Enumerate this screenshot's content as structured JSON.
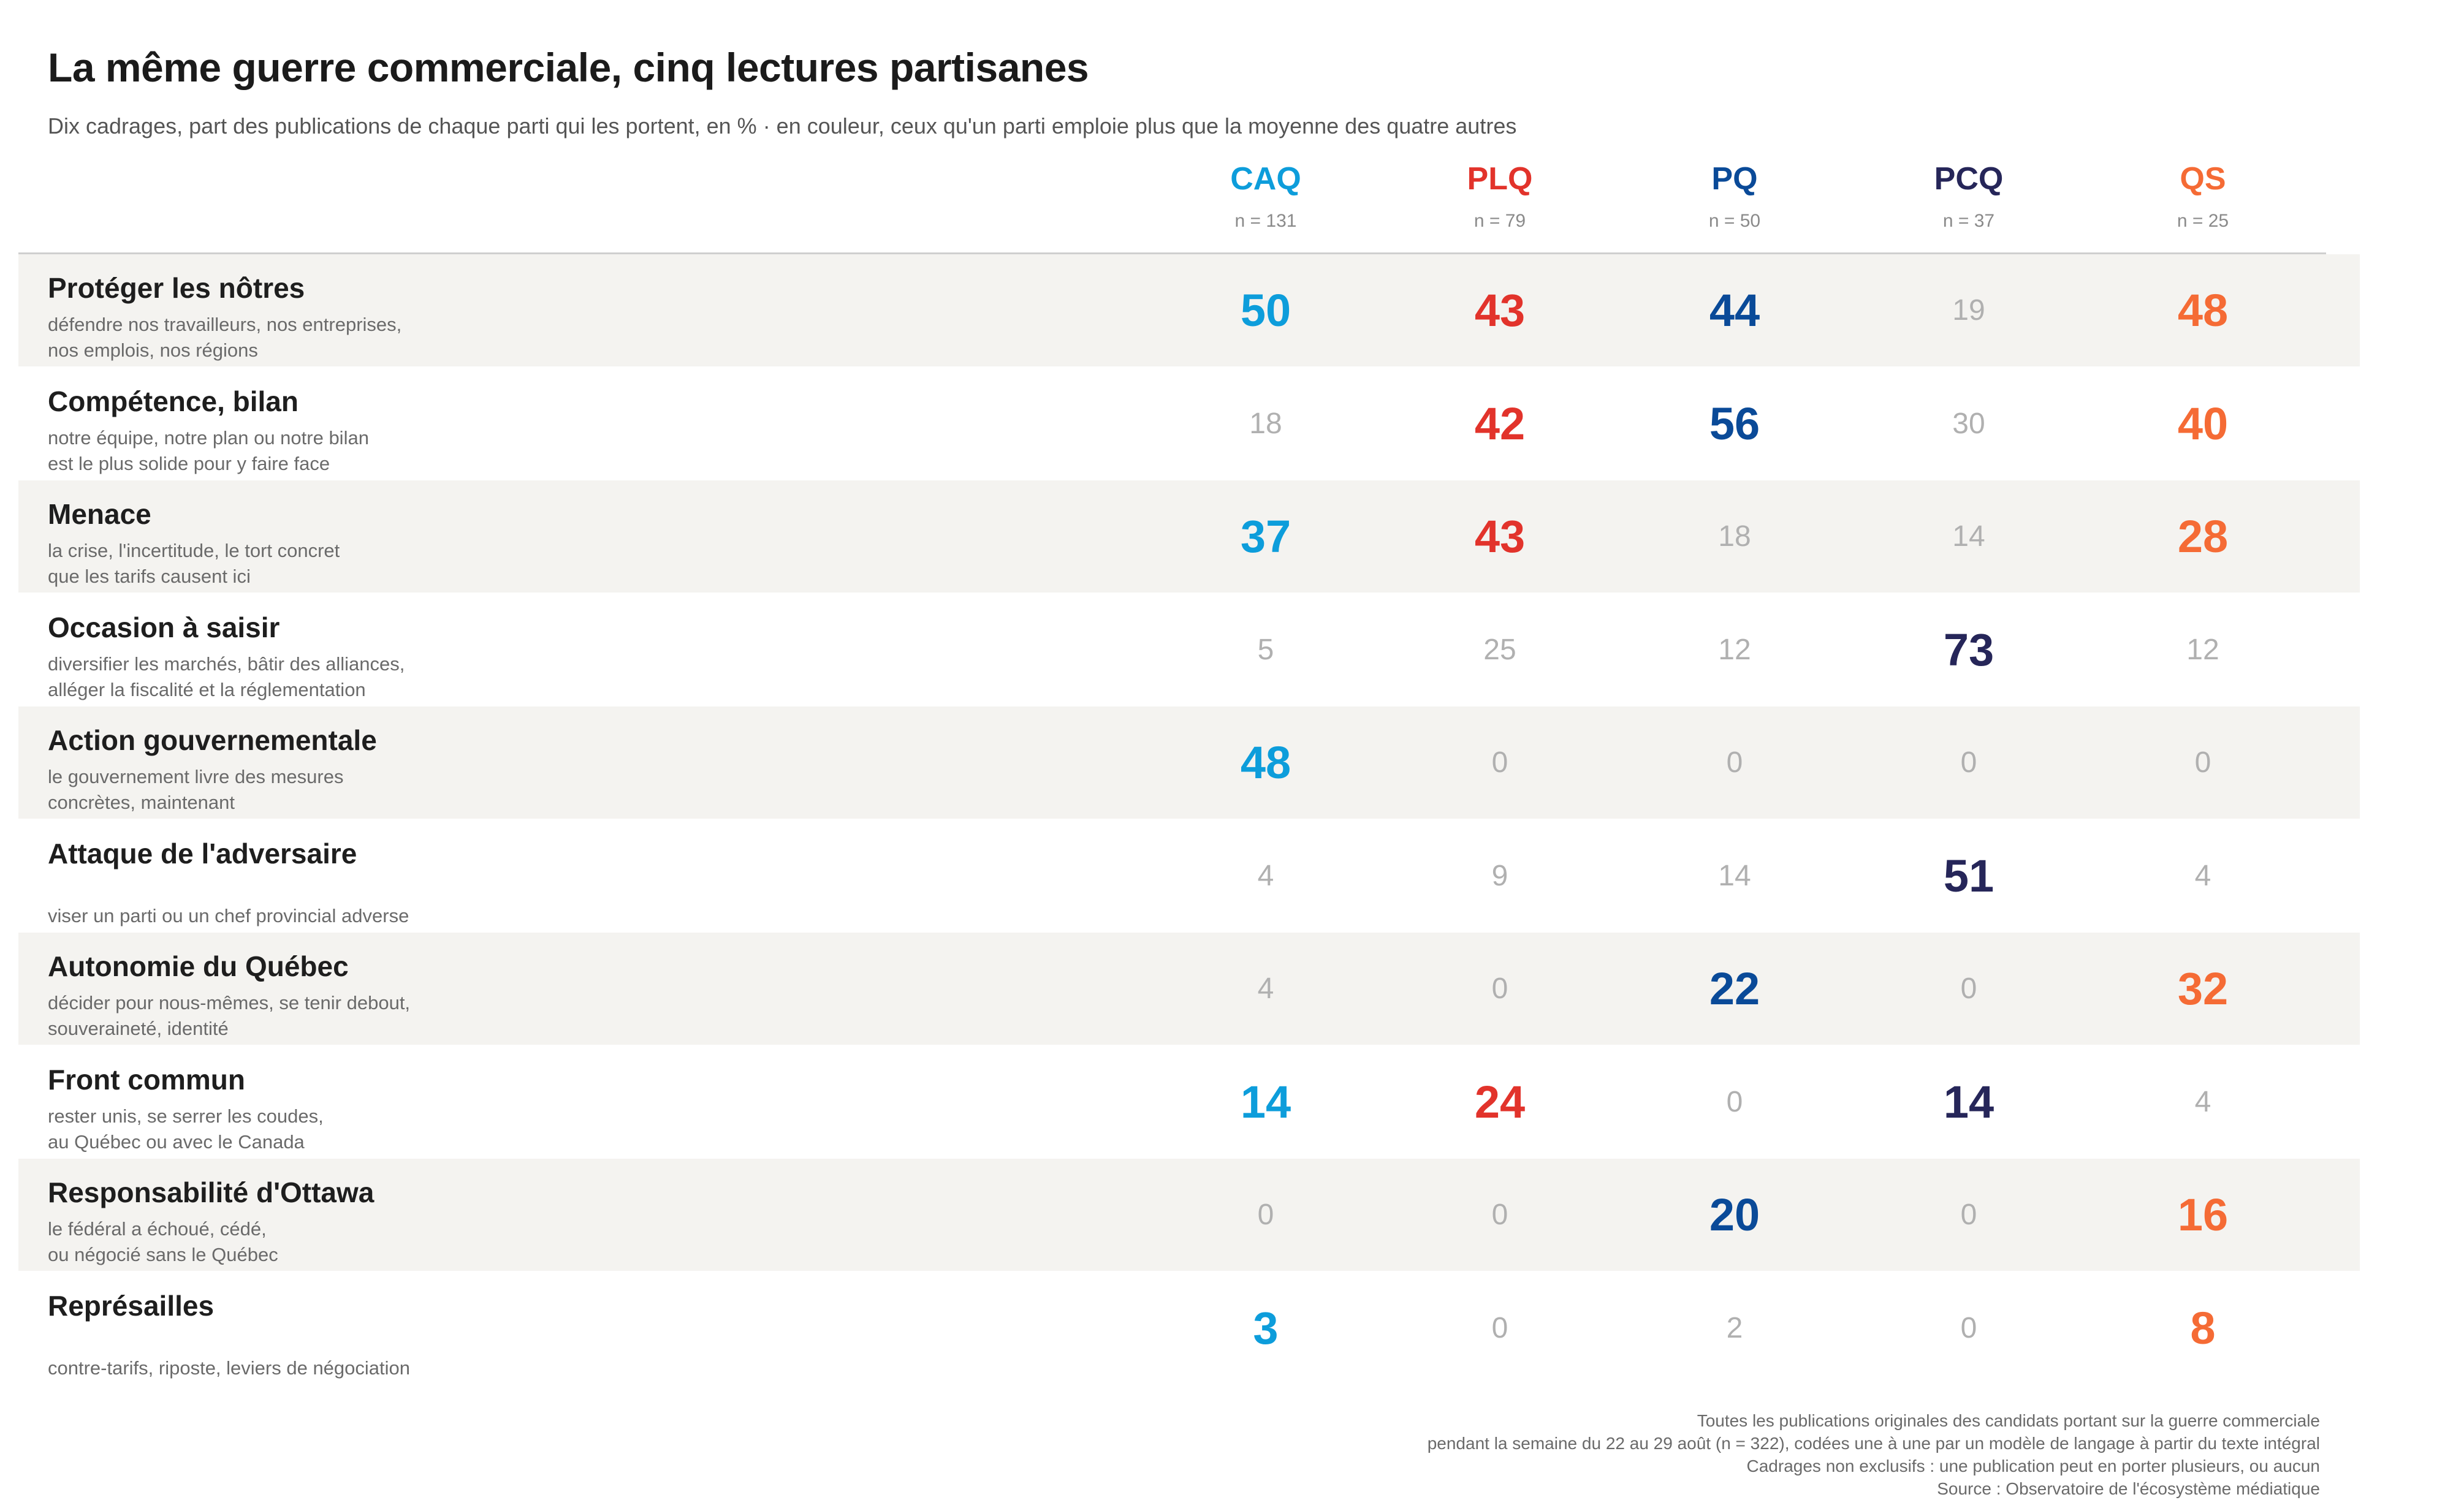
{
  "title": "La même guerre commerciale, cinq lectures partisanes",
  "subtitle": "Dix cadrages, part des publications de chaque parti qui les portent, en % · en couleur, ceux qu'un parti emploie plus que la moyenne des quatre autres",
  "parties": [
    {
      "name": "CAQ",
      "n": "n = 131",
      "color": "#0d9ddb"
    },
    {
      "name": "PLQ",
      "n": "n = 79",
      "color": "#e2332b"
    },
    {
      "name": "PQ",
      "n": "n = 50",
      "color": "#0a4a98"
    },
    {
      "name": "PCQ",
      "n": "n = 37",
      "color": "#262659"
    },
    {
      "name": "QS",
      "n": "n = 25",
      "color": "#f56b35"
    }
  ],
  "muted_color": "#b0b0b0",
  "rows": [
    {
      "label": "Protéger les nôtres",
      "desc": "défendre nos travailleurs, nos entreprises,\nnos emplois, nos régions",
      "values": [
        50,
        43,
        44,
        19,
        48
      ],
      "highlight": [
        true,
        true,
        true,
        false,
        true
      ]
    },
    {
      "label": "Compétence, bilan",
      "desc": "notre équipe, notre plan ou notre bilan\nest le plus solide pour y faire face",
      "values": [
        18,
        42,
        56,
        30,
        40
      ],
      "highlight": [
        false,
        true,
        true,
        false,
        true
      ]
    },
    {
      "label": "Menace",
      "desc": "la crise, l'incertitude, le tort concret\nque les tarifs causent ici",
      "values": [
        37,
        43,
        18,
        14,
        28
      ],
      "highlight": [
        true,
        true,
        false,
        false,
        true
      ]
    },
    {
      "label": "Occasion à saisir",
      "desc": "diversifier les marchés, bâtir des alliances,\nalléger la fiscalité et la réglementation",
      "values": [
        5,
        25,
        12,
        73,
        12
      ],
      "highlight": [
        false,
        false,
        false,
        true,
        false
      ]
    },
    {
      "label": "Action gouvernementale",
      "desc": "le gouvernement livre des mesures\nconcrètes, maintenant",
      "values": [
        48,
        0,
        0,
        0,
        0
      ],
      "highlight": [
        true,
        false,
        false,
        false,
        false
      ]
    },
    {
      "label": "Attaque de l'adversaire",
      "desc": "\nviser un parti ou un chef provincial adverse",
      "values": [
        4,
        9,
        14,
        51,
        4
      ],
      "highlight": [
        false,
        false,
        false,
        true,
        false
      ]
    },
    {
      "label": "Autonomie du Québec",
      "desc": "décider pour nous-mêmes, se tenir debout,\nsouveraineté, identité",
      "values": [
        4,
        0,
        22,
        0,
        32
      ],
      "highlight": [
        false,
        false,
        true,
        false,
        true
      ]
    },
    {
      "label": "Front commun",
      "desc": "rester unis, se serrer les coudes,\nau Québec ou avec le Canada",
      "values": [
        14,
        24,
        0,
        14,
        4
      ],
      "highlight": [
        true,
        true,
        false,
        true,
        false
      ]
    },
    {
      "label": "Responsabilité d'Ottawa",
      "desc": "le fédéral a échoué, cédé,\nou négocié sans le Québec",
      "values": [
        0,
        0,
        20,
        0,
        16
      ],
      "highlight": [
        false,
        false,
        true,
        false,
        true
      ]
    },
    {
      "label": "Représailles",
      "desc": "\ncontre-tarifs, riposte, leviers de négociation",
      "values": [
        3,
        0,
        2,
        0,
        8
      ],
      "highlight": [
        true,
        false,
        false,
        false,
        true
      ]
    }
  ],
  "footer": [
    "Toutes les publications originales des candidats portant sur la guerre commerciale",
    "pendant la semaine du 22 au 29 août (n = 322), codées une à une par un modèle de langage à partir du texte intégral",
    "Cadrages non exclusifs : une publication peut en porter plusieurs, ou aucun",
    "Source : Observatoire de l'écosystème médiatique"
  ],
  "chart_data": {
    "type": "table",
    "title": "La même guerre commerciale, cinq lectures partisanes",
    "subtitle": "Dix cadrages, part des publications de chaque parti qui les portent, en % · en couleur, ceux qu'un parti emploie plus que la moyenne des quatre autres",
    "columns": [
      "CAQ",
      "PLQ",
      "PQ",
      "PCQ",
      "QS"
    ],
    "categories": [
      "Protéger les nôtres",
      "Compétence, bilan",
      "Menace",
      "Occasion à saisir",
      "Action gouvernementale",
      "Attaque de l'adversaire",
      "Autonomie du Québec",
      "Front commun",
      "Responsabilité d'Ottawa",
      "Représailles"
    ],
    "series": [
      {
        "name": "CAQ",
        "values": [
          50,
          18,
          37,
          5,
          48,
          4,
          4,
          14,
          0,
          3
        ]
      },
      {
        "name": "PLQ",
        "values": [
          43,
          42,
          43,
          25,
          0,
          9,
          0,
          24,
          0,
          0
        ]
      },
      {
        "name": "PQ",
        "values": [
          44,
          56,
          18,
          12,
          0,
          14,
          22,
          0,
          20,
          2
        ]
      },
      {
        "name": "PCQ",
        "values": [
          19,
          30,
          14,
          73,
          0,
          51,
          0,
          14,
          0,
          0
        ]
      },
      {
        "name": "QS",
        "values": [
          48,
          40,
          28,
          12,
          0,
          4,
          32,
          4,
          16,
          8
        ]
      }
    ]
  }
}
